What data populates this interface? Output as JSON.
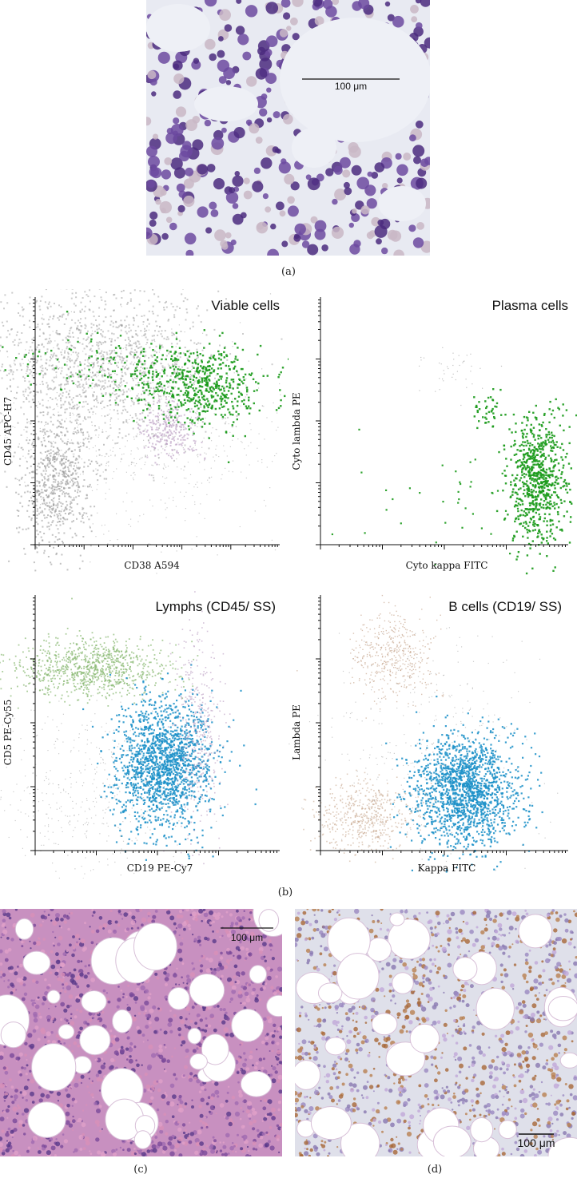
{
  "panels": {
    "a": {
      "label": "(a)",
      "scale_bar": "100 μm",
      "colors": {
        "background": "#e8eaf2",
        "cell": "#6c4aa0",
        "cell_dark": "#4b2c7f",
        "rbc": "#c9b7c6"
      }
    },
    "b": {
      "label": "(b)",
      "plots": [
        {
          "title": "Viable cells",
          "x_label": "CD38 A594",
          "y_label": "CD45 APC-H7"
        },
        {
          "title": "Plasma cells",
          "x_label": "Cyto kappa FITC",
          "y_label": "Cyto lambda PE"
        },
        {
          "title": "Lymphs (CD45/ SS)",
          "x_label": "CD19 PE-Cy7",
          "y_label": "CD5 PE-Cy55"
        },
        {
          "title": "B cells (CD19/ SS)",
          "x_label": "Kappa FITC",
          "y_label": "Lambda PE"
        }
      ],
      "colors": {
        "gray": "#9a9a9a",
        "green": "#1a9a1a",
        "light_green": "#88b870",
        "blue": "#1a8fc8",
        "purple": "#b89ac0",
        "tan": "#c8a890"
      }
    },
    "c": {
      "label": "(c)",
      "scale_bar": "100 μm",
      "colors": {
        "background": "#c890c0",
        "fat": "#ffffff"
      }
    },
    "d": {
      "label": "(d)",
      "scale_bar": "100 μm",
      "colors": {
        "background": "#c8b8d8",
        "brown": "#a86838",
        "fat": "#ffffff"
      }
    }
  }
}
